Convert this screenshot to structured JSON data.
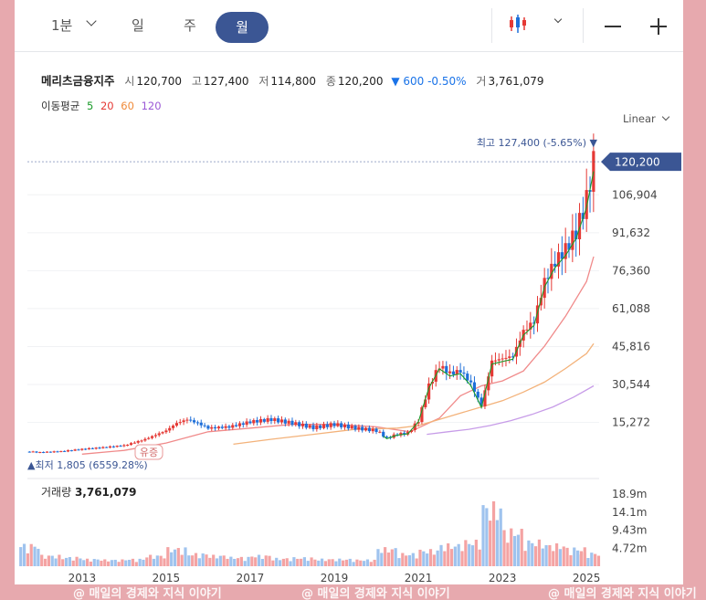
{
  "toolbar": {
    "interval_label": "1분",
    "tab_day": "일",
    "tab_week": "주",
    "tab_month": "월"
  },
  "quote": {
    "name": "메리츠금융지주",
    "open_label": "시",
    "open": "120,700",
    "high_label": "고",
    "high": "127,400",
    "low_label": "저",
    "low": "114,800",
    "close_label": "종",
    "close": "120,200",
    "change": "▼ 600 -0.50%",
    "volume_label": "거",
    "volume": "3,761,079"
  },
  "moving_average": {
    "label": "이동평균",
    "periods": [
      {
        "text": "5",
        "color": "#1a9b2a"
      },
      {
        "text": "20",
        "color": "#e53935"
      },
      {
        "text": "60",
        "color": "#f08a3a"
      },
      {
        "text": "120",
        "color": "#9b59d6"
      }
    ]
  },
  "scale_mode": "Linear",
  "annotations": {
    "high_marker": "최고 127,400 (-5.65%) ▼",
    "low_marker": "▲최저 1,805 (6559.28%)",
    "event_tag": "유증",
    "current_price_tag": "120,200"
  },
  "volume_panel": {
    "label": "거래량",
    "value": "3,761,079"
  },
  "watermark": "@ 매일의 경제와 지식 이야기",
  "colors": {
    "up": "#e53935",
    "down": "#1e6fd9",
    "accent": "#3b5694",
    "ma5": "#1a9b2a",
    "ma20": "#f08a8a",
    "ma60": "#f3b27a",
    "ma120": "#c79ce8"
  },
  "chart_data": {
    "type": "candlestick",
    "period": "monthly",
    "y_ticks": [
      15272,
      30544,
      45816,
      61088,
      76360,
      91632,
      106904
    ],
    "y_tick_labels": [
      "15,272",
      "30,544",
      "45,816",
      "61,088",
      "76,360",
      "91,632",
      "106,904"
    ],
    "ylim": [
      -4000,
      132000
    ],
    "x_ticks": [
      2013,
      2015,
      2017,
      2019,
      2021,
      2023,
      2025
    ],
    "xlim": [
      2011.7,
      2025.3
    ],
    "series": [
      {
        "name": "price_close",
        "x": [
          2011.75,
          2012.0,
          2012.5,
          2013.0,
          2013.5,
          2014.0,
          2014.5,
          2015.0,
          2015.25,
          2015.5,
          2015.75,
          2016.0,
          2016.5,
          2017.0,
          2017.5,
          2018.0,
          2018.5,
          2019.0,
          2019.5,
          2020.0,
          2020.25,
          2020.5,
          2020.75,
          2021.0,
          2021.25,
          2021.5,
          2021.75,
          2022.0,
          2022.25,
          2022.5,
          2022.75,
          2023.0,
          2023.25,
          2023.5,
          2023.75,
          2024.0,
          2024.25,
          2024.5,
          2024.75,
          2025.0,
          2025.08,
          2025.17
        ],
        "y": [
          3500,
          3200,
          3600,
          4500,
          5200,
          6000,
          8500,
          12000,
          15000,
          16500,
          15000,
          13000,
          13500,
          15500,
          16500,
          15000,
          13200,
          14500,
          13000,
          12000,
          9000,
          10500,
          11000,
          16000,
          30000,
          38000,
          35000,
          36000,
          31000,
          22000,
          40000,
          41000,
          42000,
          52000,
          56000,
          72000,
          80000,
          85000,
          92000,
          105000,
          112000,
          120200
        ]
      },
      {
        "name": "ma20",
        "x": [
          2013.0,
          2014.0,
          2015.0,
          2016.0,
          2017.0,
          2018.0,
          2019.0,
          2020.0,
          2020.8,
          2021.5,
          2022.0,
          2022.5,
          2023.0,
          2023.5,
          2024.0,
          2024.5,
          2025.0,
          2025.17
        ],
        "y": [
          2500,
          4000,
          7000,
          11500,
          13000,
          14500,
          14500,
          13500,
          11500,
          17000,
          26000,
          30000,
          32000,
          36000,
          46000,
          58000,
          72000,
          82000
        ]
      },
      {
        "name": "ma60",
        "x": [
          2016.6,
          2017.5,
          2018.5,
          2019.5,
          2020.5,
          2021.0,
          2021.5,
          2022.0,
          2022.5,
          2023.0,
          2023.5,
          2024.0,
          2024.5,
          2025.0,
          2025.17
        ],
        "y": [
          6500,
          8500,
          10500,
          12500,
          13000,
          14000,
          16500,
          19000,
          21500,
          24000,
          27500,
          31500,
          37000,
          43000,
          47000
        ]
      },
      {
        "name": "ma120",
        "x": [
          2021.2,
          2021.7,
          2022.2,
          2022.7,
          2023.2,
          2023.7,
          2024.2,
          2024.7,
          2025.17
        ],
        "y": [
          10500,
          11500,
          12500,
          14000,
          16000,
          18500,
          21500,
          25500,
          30000
        ]
      }
    ],
    "volume": {
      "y_ticks": [
        4.72,
        9.43,
        14.1,
        18.9
      ],
      "y_tick_labels": [
        "4.72m",
        "9.43m",
        "14.1m",
        "18.9m"
      ],
      "ylim": [
        0,
        22
      ],
      "x": [
        2011.75,
        2012.25,
        2012.75,
        2013.25,
        2013.75,
        2014.25,
        2014.75,
        2015.25,
        2015.75,
        2016.25,
        2016.75,
        2017.25,
        2017.75,
        2018.25,
        2018.75,
        2019.25,
        2019.75,
        2020.25,
        2020.75,
        2021.25,
        2021.75,
        2022.25,
        2022.75,
        2023.25,
        2023.75,
        2024.25,
        2024.75,
        2025.08
      ],
      "values": [
        6,
        3,
        2.5,
        2,
        1.8,
        2,
        3,
        5,
        3.5,
        3,
        2.5,
        3,
        2.2,
        2.4,
        2,
        2,
        1.8,
        5,
        3.5,
        4.5,
        6,
        7,
        17,
        10,
        7,
        6,
        5,
        3.7
      ]
    }
  }
}
